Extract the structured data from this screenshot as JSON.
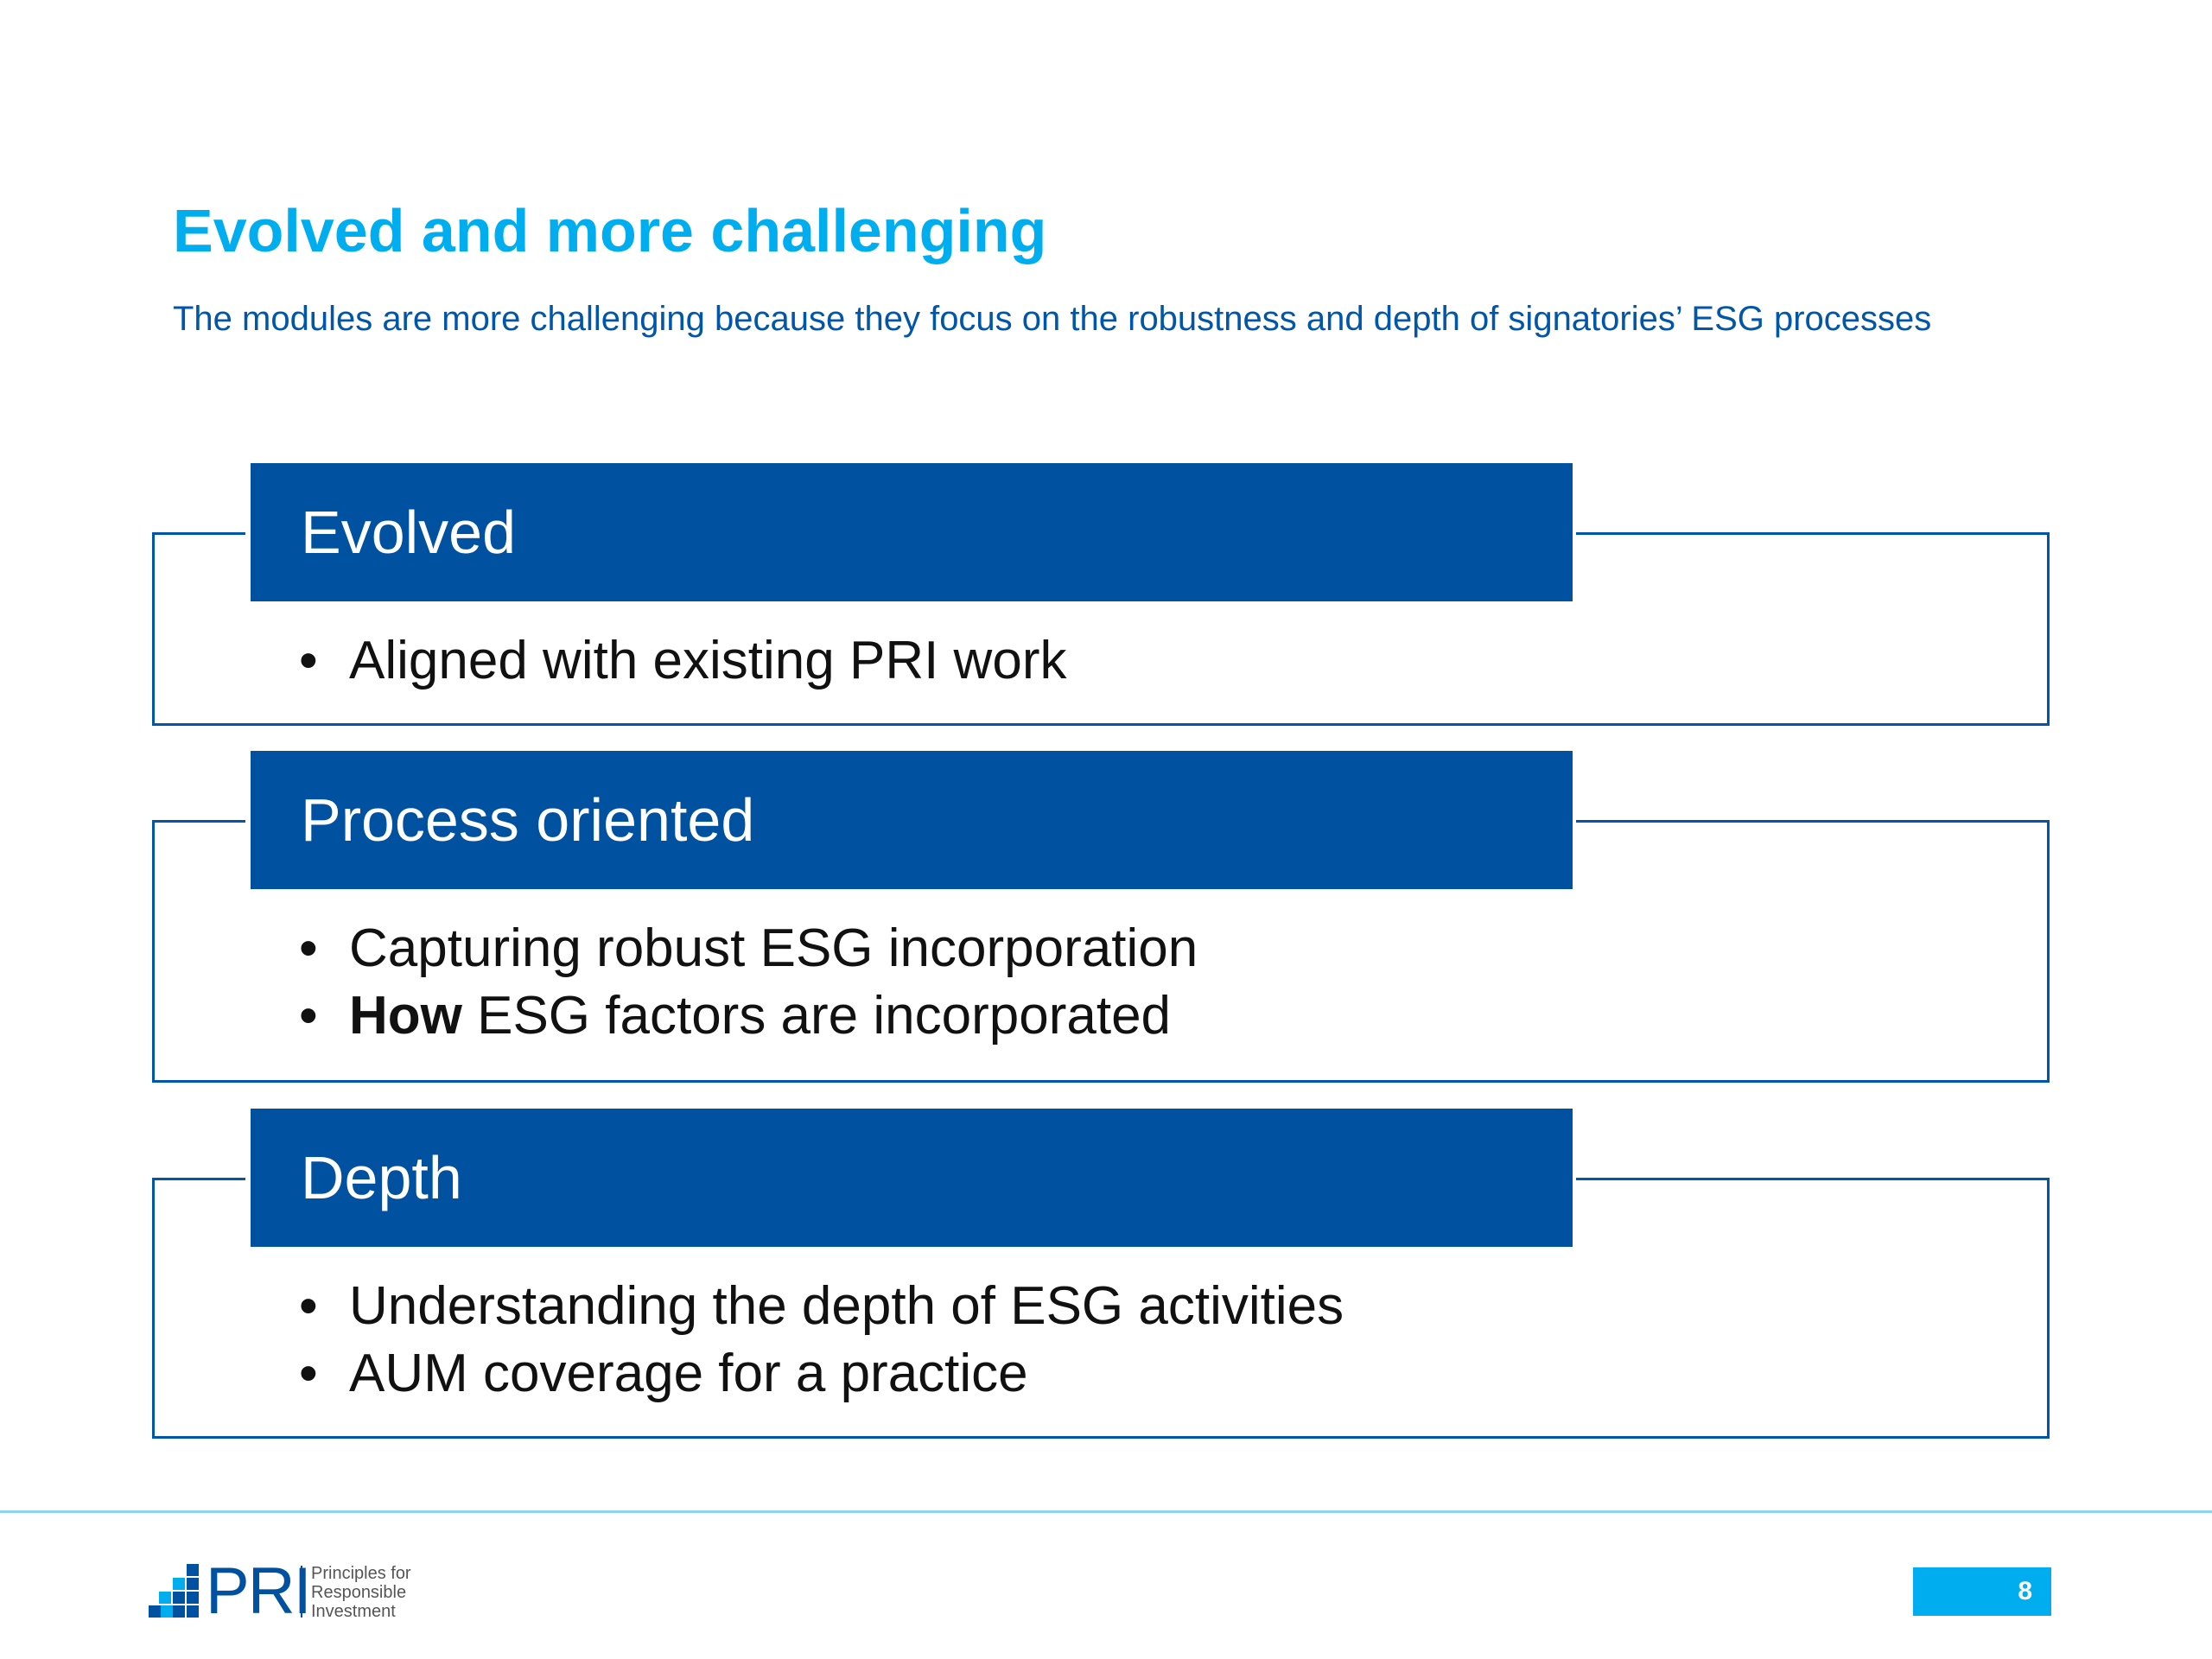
{
  "slide": {
    "title": "Evolved and more challenging",
    "subtitle": "The modules are more challenging because they focus on the robustness and depth of signatories’ ESG processes"
  },
  "sections": [
    {
      "header": "Evolved",
      "bullets": [
        {
          "bold": "",
          "text": "Aligned with existing PRI work"
        }
      ]
    },
    {
      "header": "Process oriented",
      "bullets": [
        {
          "bold": "",
          "text": "Capturing robust ESG incorporation"
        },
        {
          "bold": "How",
          "text": " ESG factors are incorporated"
        }
      ]
    },
    {
      "header": "Depth",
      "bullets": [
        {
          "bold": "",
          "text": "Understanding the depth of ESG activities"
        },
        {
          "bold": "",
          "text": "AUM coverage for a practice"
        }
      ]
    }
  ],
  "footer": {
    "logo_mark": "PRI",
    "logo_tagline_lines": [
      "Principles for",
      "Responsible",
      "Investment"
    ],
    "page_number": "8"
  },
  "colors": {
    "title": "#00AEEF",
    "subtitle": "#0056A8",
    "header_fill": "#0051A0",
    "frame": "#0056A8",
    "page_badge": "#00AEEF"
  },
  "icons": [
    "pri-logo-squares-icon"
  ]
}
